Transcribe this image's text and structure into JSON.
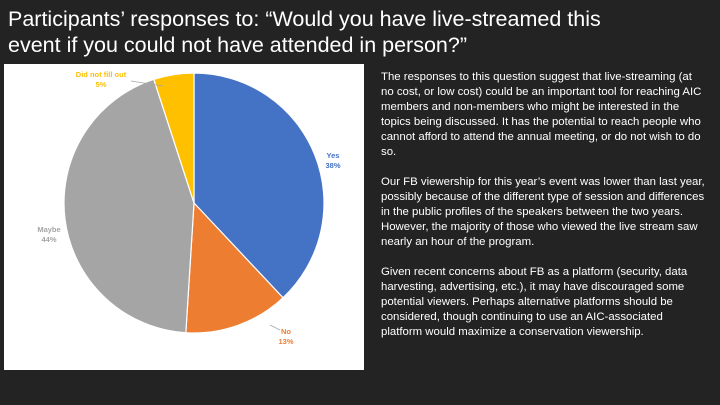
{
  "slide": {
    "title_line1": "Participants’ responses to: “Would you have live-streamed this",
    "title_line2": "event if you could not have attended in person?”",
    "paragraphs": [
      "The responses to this question suggest that live-streaming (at no cost, or low cost) could be an important tool for reaching AIC members and non-members who might be interested in the topics being discussed. It has the potential to reach people who cannot afford to attend the annual meeting, or do not wish to do so.",
      "Our FB viewership for this year’s event was lower than last year, possibly because of the different type of session and differences in the public profiles of the speakers between the two years.  However, the majority of those who viewed the live stream saw nearly an hour of the program.",
      "Given recent concerns about FB as a platform (security, data harvesting, advertising, etc.), it may have discouraged some potential viewers. Perhaps alternative platforms should be considered, though continuing to use an AIC-associated platform would maximize a conservation viewership."
    ]
  },
  "chart_data": {
    "type": "pie",
    "title": "",
    "categories": [
      "Yes",
      "No",
      "Maybe",
      "Did not fill out"
    ],
    "values": [
      38,
      13,
      44,
      5
    ],
    "labels": [
      "38%",
      "13%",
      "44%",
      "5%"
    ],
    "colors": [
      "#4472c4",
      "#ed7d31",
      "#a5a5a5",
      "#ffc000"
    ],
    "start": "12 o'clock, clockwise"
  }
}
